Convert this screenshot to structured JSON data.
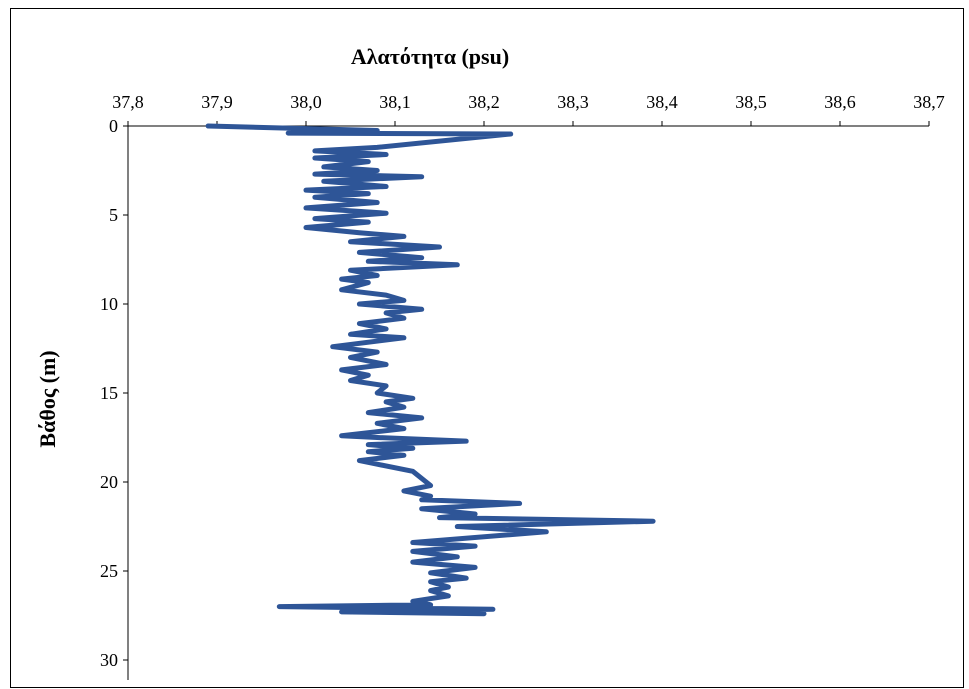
{
  "chart_data": {
    "type": "line",
    "title": "Αλατότητα (psu)",
    "xlabel": "",
    "ylabel": "Βάθος (m)",
    "xlim": [
      37.8,
      38.7
    ],
    "ylim": [
      0,
      30
    ],
    "y_inverted": true,
    "x_axis_position": "top",
    "grid": false,
    "x_ticks": [
      "37,8",
      "37,9",
      "38,0",
      "38,1",
      "38,2",
      "38,3",
      "38,4",
      "38,5",
      "38,6",
      "38,7"
    ],
    "x_tick_values": [
      37.8,
      37.9,
      38.0,
      38.1,
      38.2,
      38.3,
      38.4,
      38.5,
      38.6,
      38.7
    ],
    "y_ticks": [
      "0",
      "5",
      "10",
      "15",
      "20",
      "25",
      "30"
    ],
    "y_tick_values": [
      0,
      5,
      10,
      15,
      20,
      25,
      30
    ],
    "series": [
      {
        "color": "#2e5597",
        "x": [
          37.89,
          38.08,
          37.98,
          38.23,
          38.08,
          38.01,
          38.09,
          38.01,
          38.07,
          38.02,
          38.08,
          38.01,
          38.13,
          38.02,
          38.09,
          38.0,
          38.07,
          38.01,
          38.08,
          38.0,
          38.09,
          38.01,
          38.07,
          38.0,
          38.06,
          38.11,
          38.05,
          38.15,
          38.06,
          38.13,
          38.07,
          38.17,
          38.05,
          38.08,
          38.04,
          38.07,
          38.04,
          38.09,
          38.11,
          38.06,
          38.13,
          38.09,
          38.11,
          38.06,
          38.09,
          38.05,
          38.11,
          38.03,
          38.08,
          38.05,
          38.09,
          38.04,
          38.07,
          38.05,
          38.09,
          38.08,
          38.12,
          38.09,
          38.11,
          38.07,
          38.13,
          38.08,
          38.11,
          38.04,
          38.08,
          38.18,
          38.07,
          38.12,
          38.07,
          38.11,
          38.06,
          38.08,
          38.12,
          38.14,
          38.11,
          38.14,
          38.13,
          38.24,
          38.13,
          38.19,
          38.15,
          38.39,
          38.17,
          38.27,
          38.12,
          38.19,
          38.12,
          38.17,
          38.12,
          38.19,
          38.14,
          38.18,
          38.14,
          38.16,
          38.14,
          38.16,
          38.12,
          38.14,
          37.97,
          38.21,
          38.04,
          38.2
        ],
        "y": [
          0.0,
          0.25,
          0.4,
          0.45,
          1.2,
          1.4,
          1.6,
          1.8,
          2.0,
          2.3,
          2.5,
          2.7,
          2.85,
          3.1,
          3.4,
          3.6,
          3.8,
          4.0,
          4.3,
          4.6,
          4.9,
          5.2,
          5.4,
          5.7,
          6.0,
          6.2,
          6.5,
          6.8,
          7.1,
          7.4,
          7.6,
          7.8,
          8.1,
          8.4,
          8.6,
          8.8,
          9.2,
          9.5,
          9.8,
          10.0,
          10.3,
          10.5,
          10.8,
          11.1,
          11.4,
          11.7,
          11.9,
          12.4,
          12.7,
          13.0,
          13.4,
          13.7,
          14.0,
          14.3,
          14.6,
          15.0,
          15.3,
          15.5,
          15.8,
          16.1,
          16.4,
          16.7,
          17.0,
          17.4,
          17.5,
          17.7,
          17.9,
          18.1,
          18.3,
          18.5,
          18.8,
          19.0,
          19.4,
          20.2,
          20.5,
          20.8,
          21.0,
          21.2,
          21.5,
          21.8,
          22.0,
          22.2,
          22.5,
          22.8,
          23.4,
          23.6,
          23.9,
          24.2,
          24.5,
          24.8,
          25.1,
          25.4,
          25.6,
          25.9,
          26.1,
          26.4,
          26.7,
          26.9,
          27.0,
          27.15,
          27.3,
          27.4
        ]
      }
    ]
  }
}
